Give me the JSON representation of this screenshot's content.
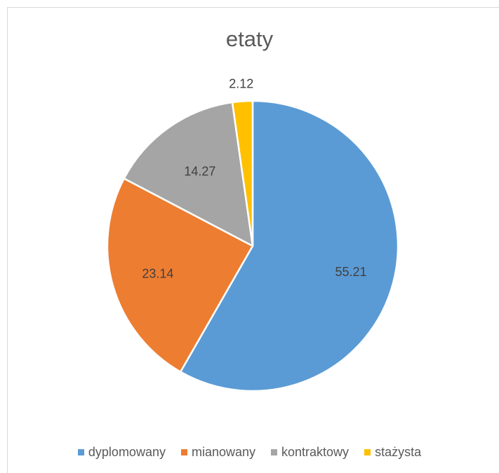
{
  "chart_data": {
    "type": "pie",
    "title": "etaty",
    "categories": [
      "dyplomowany",
      "mianowany",
      "kontraktowy",
      "stażysta"
    ],
    "values": [
      55.21,
      23.14,
      14.27,
      2.12
    ],
    "data_labels": [
      "55.21",
      "23.14",
      "14.27",
      "2.12"
    ],
    "colors": [
      "#5b9bd5",
      "#ed7d31",
      "#a5a5a5",
      "#ffc000"
    ],
    "legend_position": "bottom",
    "start_angle": "top",
    "direction": "clockwise"
  }
}
